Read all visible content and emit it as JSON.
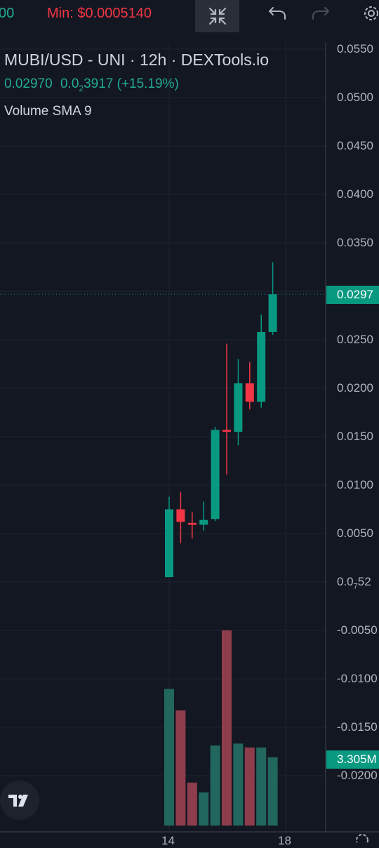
{
  "header": {
    "max_fragment": "00",
    "min_label": "Min: $0.0005140",
    "colors": {
      "green": "#22ab94",
      "red": "#f23645"
    }
  },
  "toolbar": {
    "collapse_icon": "collapse-arrows-icon",
    "undo_icon": "undo-icon",
    "redo_icon": "redo-icon",
    "settings_icon": "gear-icon"
  },
  "legend": {
    "title": "MUBI/USD - UNI · 12h · DEXTools.io",
    "price_close": "0.02970",
    "price_value": "0.0",
    "price_sub": "2",
    "price_rest": "3917 (+15.19%)",
    "indicator": "Volume SMA 9"
  },
  "axis": {
    "y_labels": [
      "0.0550",
      "0.0500",
      "0.0450",
      "0.0400",
      "0.0350",
      "0.0250",
      "0.0200",
      "0.0150",
      "0.0100",
      "0.0050",
      "0.0",
      "-0.0050",
      "-0.0100",
      "-0.0150",
      "-0.0200"
    ],
    "y_label_suffix_sub": "7",
    "y_label_suffix": "52",
    "current_price_tag": "0.0297",
    "volume_tag": "3.305M",
    "x_labels": [
      "14",
      "18"
    ]
  },
  "branding": {
    "logo_icon": "tradingview-logo-icon"
  },
  "chart_data": {
    "type": "candlestick",
    "title": "MUBI/USD - UNI · 12h · DEXTools.io",
    "interval": "12h",
    "ylim": [
      -0.0225,
      0.0575
    ],
    "last_price": 0.0297,
    "colors": {
      "up": "#089981",
      "down": "#f23645",
      "vol_up": "#22675d",
      "vol_down": "#8e3d4c"
    },
    "candles": [
      {
        "open": 0.0005,
        "high": 0.0088,
        "low": 0.0005,
        "close": 0.0075
      },
      {
        "open": 0.0075,
        "high": 0.0093,
        "low": 0.004,
        "close": 0.0062
      },
      {
        "open": 0.0061,
        "high": 0.0072,
        "low": 0.0045,
        "close": 0.0059
      },
      {
        "open": 0.0059,
        "high": 0.0083,
        "low": 0.0053,
        "close": 0.0064
      },
      {
        "open": 0.0065,
        "high": 0.016,
        "low": 0.0063,
        "close": 0.0157
      },
      {
        "open": 0.0157,
        "high": 0.0246,
        "low": 0.0111,
        "close": 0.0155
      },
      {
        "open": 0.0155,
        "high": 0.023,
        "low": 0.0141,
        "close": 0.0205
      },
      {
        "open": 0.0205,
        "high": 0.0227,
        "low": 0.0178,
        "close": 0.0186
      },
      {
        "open": 0.0186,
        "high": 0.0276,
        "low": 0.018,
        "close": 0.0258
      },
      {
        "open": 0.0258,
        "high": 0.033,
        "low": 0.0255,
        "close": 0.0297
      }
    ],
    "volume_fraction": [
      0.7,
      0.59,
      0.22,
      0.17,
      0.41,
      1.0,
      0.42,
      0.4,
      0.4,
      0.35
    ],
    "volume_last": "3.305M",
    "x_tick_labels": [
      {
        "label": "14",
        "index": 0
      },
      {
        "label": "18",
        "index": 10
      }
    ]
  }
}
